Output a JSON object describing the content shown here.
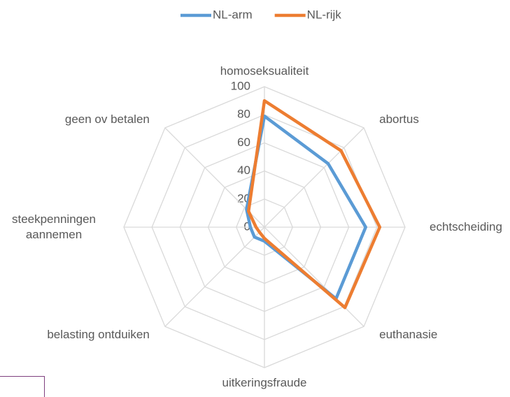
{
  "chart_data": {
    "type": "radar",
    "categories": [
      "homoseksualiteit",
      "abortus",
      "echtscheiding",
      "euthanasie",
      "uitkeringsfraude",
      "belasting ontduiken",
      "steekpenningen aannemen",
      "geen ov betalen"
    ],
    "series": [
      {
        "name": "NL-arm",
        "color": "#5b9bd5",
        "values": [
          79,
          64,
          72,
          72,
          10,
          10,
          10,
          18
        ]
      },
      {
        "name": "NL-rijk",
        "color": "#ed7d31",
        "values": [
          90,
          77,
          82,
          81,
          8,
          5,
          6,
          16
        ]
      }
    ],
    "ylim": [
      0,
      100
    ],
    "yticks": [
      0,
      20,
      40,
      60,
      80,
      100
    ],
    "grid": true,
    "legend": "top"
  }
}
